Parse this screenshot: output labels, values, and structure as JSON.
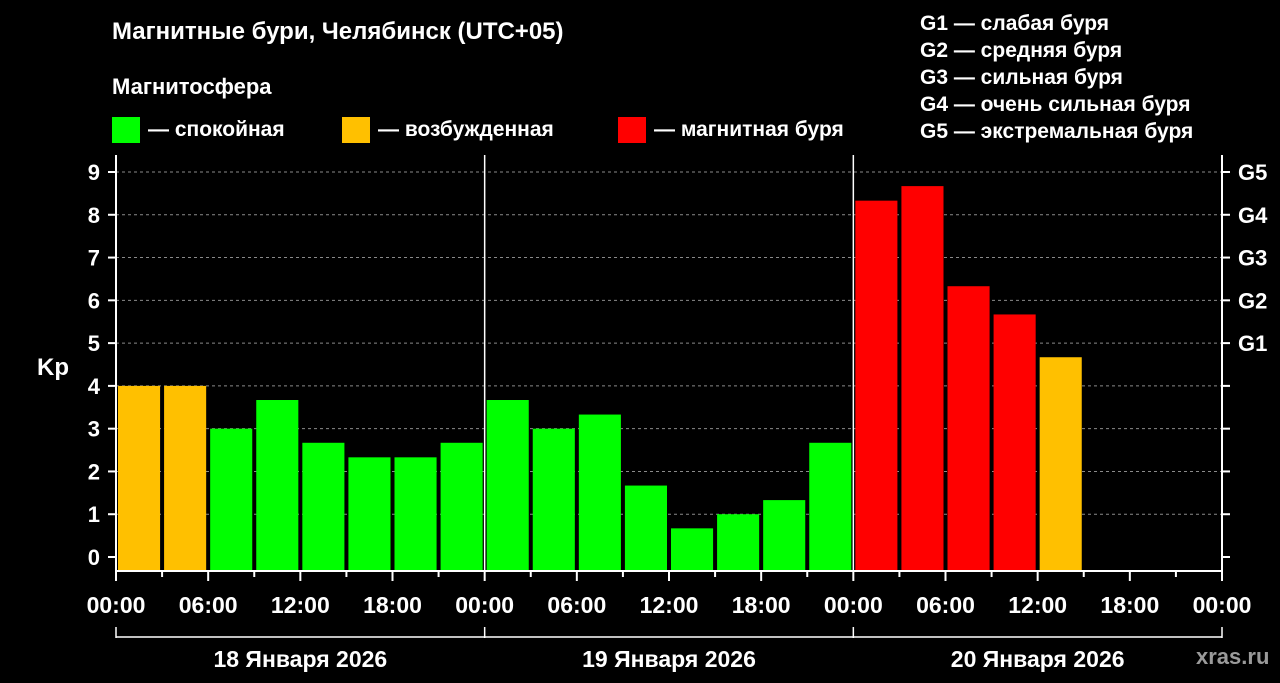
{
  "header": {
    "title": "Магнитные бури, Челябинск (UTC+05)",
    "magnetosphere_label": "Магнитосфера"
  },
  "legend": [
    {
      "label": "— спокойная",
      "color": "#00ff00"
    },
    {
      "label": "— возбужденная",
      "color": "#ffc000"
    },
    {
      "label": "— магнитная буря",
      "color": "#ff0000"
    }
  ],
  "g_scale": [
    "G1 — слабая буря",
    "G2 — средняя буря",
    "G3 — сильная буря",
    "G4 — очень сильная буря",
    "G5 — экстремальная буря"
  ],
  "watermark": "xras.ru",
  "chart_data": {
    "type": "bar",
    "ylabel": "Kp",
    "ylim": [
      0,
      9
    ],
    "yticks": [
      0,
      1,
      2,
      3,
      4,
      5,
      6,
      7,
      8,
      9
    ],
    "right_ticks": [
      {
        "value": 5,
        "label": "G1"
      },
      {
        "value": 6,
        "label": "G2"
      },
      {
        "value": 7,
        "label": "G3"
      },
      {
        "value": 8,
        "label": "G4"
      },
      {
        "value": 9,
        "label": "G5"
      }
    ],
    "x_hours_total": 72,
    "xticks": [
      "00:00",
      "06:00",
      "12:00",
      "18:00",
      "00:00",
      "06:00",
      "12:00",
      "18:00",
      "00:00",
      "06:00",
      "12:00",
      "18:00",
      "00:00"
    ],
    "days": [
      "18 Января 2026",
      "19 Января 2026",
      "20 Января 2026"
    ],
    "grid": true,
    "colors": {
      "quiet": "#00ff00",
      "active": "#ffc000",
      "storm": "#ff0000"
    },
    "bars": [
      {
        "start_hour": 0,
        "value": 4.0,
        "level": "active"
      },
      {
        "start_hour": 3,
        "value": 4.0,
        "level": "active"
      },
      {
        "start_hour": 6,
        "value": 3.0,
        "level": "quiet"
      },
      {
        "start_hour": 9,
        "value": 3.67,
        "level": "quiet"
      },
      {
        "start_hour": 12,
        "value": 2.67,
        "level": "quiet"
      },
      {
        "start_hour": 15,
        "value": 2.33,
        "level": "quiet"
      },
      {
        "start_hour": 18,
        "value": 2.33,
        "level": "quiet"
      },
      {
        "start_hour": 21,
        "value": 2.67,
        "level": "quiet"
      },
      {
        "start_hour": 24,
        "value": 3.67,
        "level": "quiet"
      },
      {
        "start_hour": 27,
        "value": 3.0,
        "level": "quiet"
      },
      {
        "start_hour": 30,
        "value": 3.33,
        "level": "quiet"
      },
      {
        "start_hour": 33,
        "value": 1.67,
        "level": "quiet"
      },
      {
        "start_hour": 36,
        "value": 0.67,
        "level": "quiet"
      },
      {
        "start_hour": 39,
        "value": 1.0,
        "level": "quiet"
      },
      {
        "start_hour": 42,
        "value": 1.33,
        "level": "quiet"
      },
      {
        "start_hour": 45,
        "value": 2.67,
        "level": "quiet"
      },
      {
        "start_hour": 48,
        "value": 8.33,
        "level": "storm"
      },
      {
        "start_hour": 51,
        "value": 8.67,
        "level": "storm"
      },
      {
        "start_hour": 54,
        "value": 6.33,
        "level": "storm"
      },
      {
        "start_hour": 57,
        "value": 5.67,
        "level": "storm"
      },
      {
        "start_hour": 60,
        "value": 4.67,
        "level": "active"
      }
    ]
  }
}
